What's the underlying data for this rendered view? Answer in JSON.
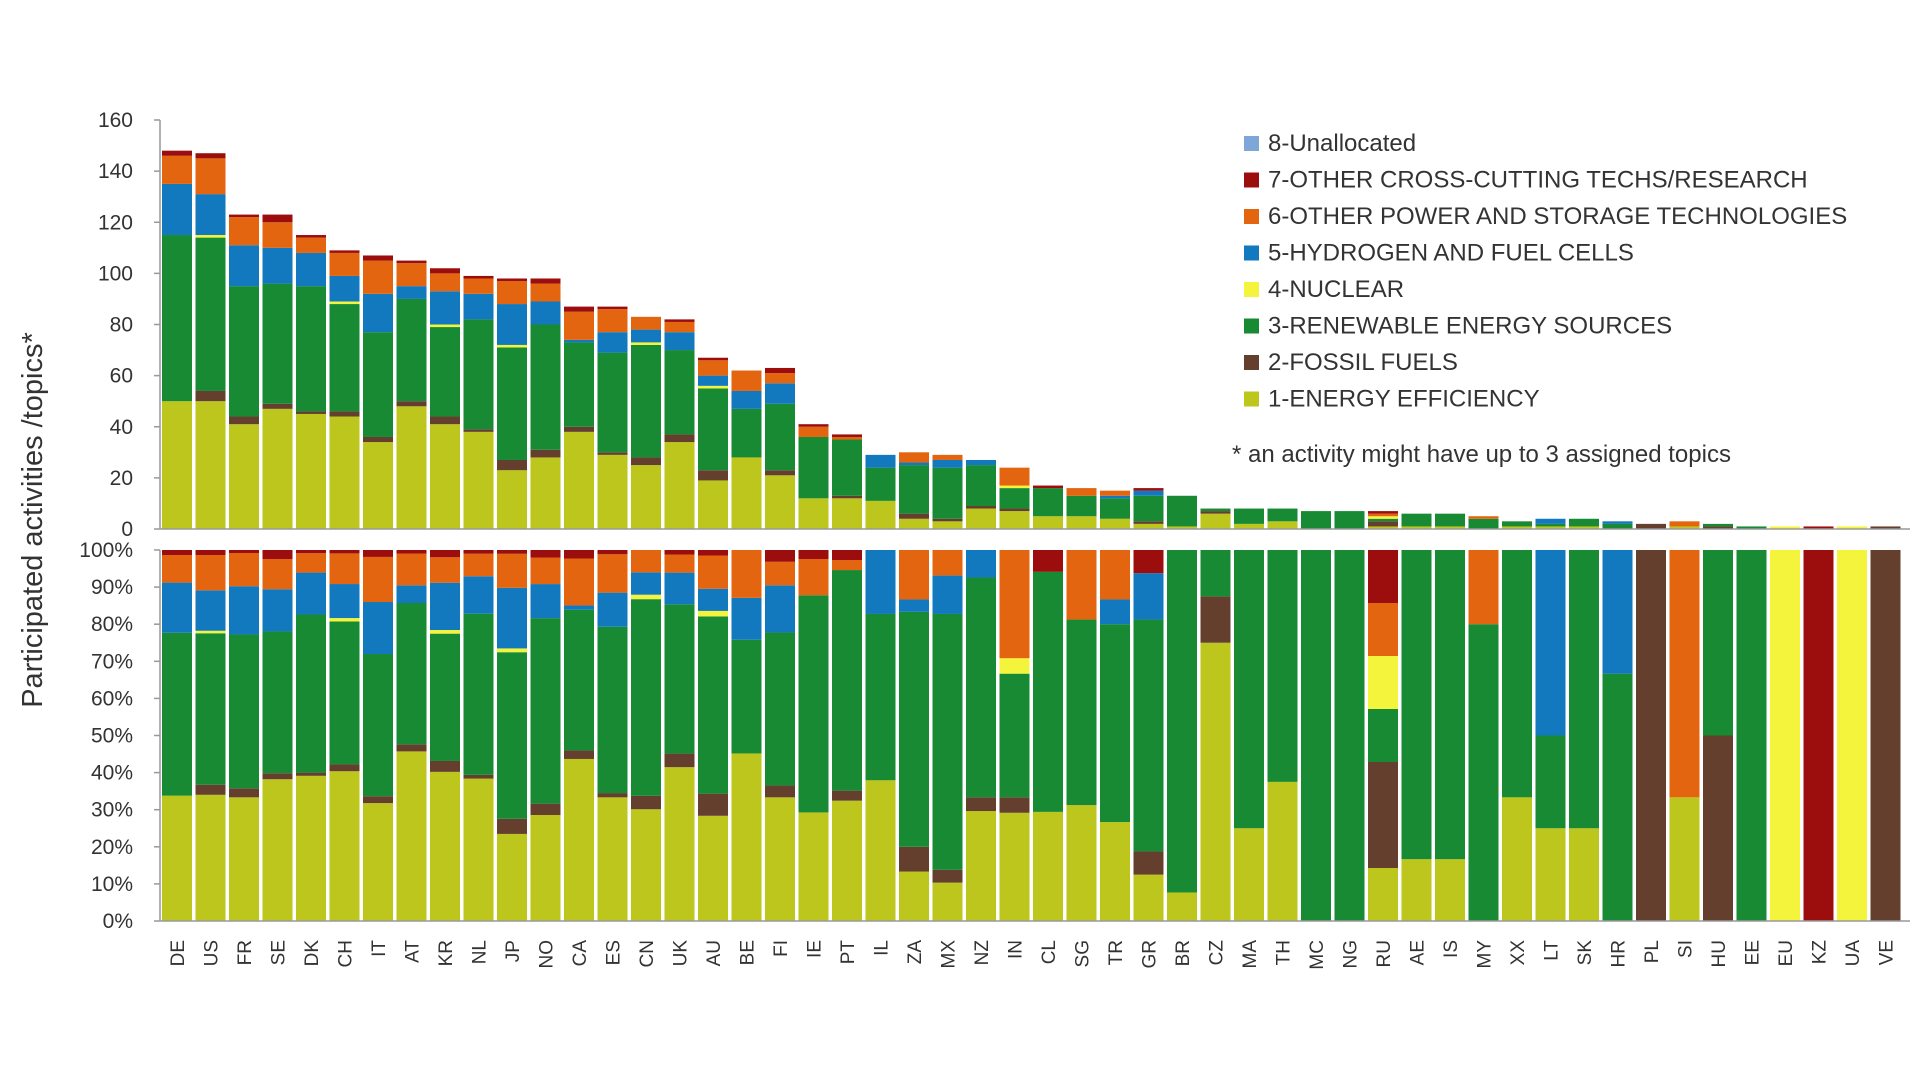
{
  "chart_data": {
    "type": "bar",
    "stacked": true,
    "ylabel": "Participated activities /topics*",
    "note": "* an activity might have up to 3 assigned topics",
    "categories": [
      "DE",
      "US",
      "FR",
      "SE",
      "DK",
      "CH",
      "IT",
      "AT",
      "KR",
      "NL",
      "JP",
      "NO",
      "CA",
      "ES",
      "CN",
      "UK",
      "AU",
      "BE",
      "FI",
      "IE",
      "PT",
      "IL",
      "ZA",
      "MX",
      "NZ",
      "IN",
      "CL",
      "SG",
      "TR",
      "GR",
      "BR",
      "CZ",
      "MA",
      "TH",
      "MC",
      "NG",
      "RU",
      "AE",
      "IS",
      "MY",
      "XX",
      "LT",
      "SK",
      "HR",
      "PL",
      "SI",
      "HU",
      "EE",
      "EU",
      "KZ",
      "UA",
      "VE"
    ],
    "series": [
      {
        "name": "1-ENERGY EFFICIENCY",
        "color": "#bcc61c",
        "values": [
          50,
          50,
          41,
          47,
          45,
          44,
          34,
          48,
          41,
          38,
          23,
          28,
          38,
          29,
          25,
          34,
          19,
          28,
          21,
          12,
          12,
          11,
          4,
          3,
          8,
          7,
          5,
          5,
          4,
          2,
          1,
          6,
          2,
          3,
          0,
          0,
          1,
          1,
          1,
          0,
          1,
          1,
          1,
          0,
          0,
          1,
          0,
          0,
          0,
          0,
          0,
          0
        ]
      },
      {
        "name": "2-FOSSIL FUELS",
        "color": "#643f2e",
        "values": [
          0,
          4,
          3,
          2,
          1,
          2,
          2,
          2,
          3,
          1,
          4,
          3,
          2,
          1,
          3,
          3,
          4,
          0,
          2,
          0,
          1,
          0,
          2,
          1,
          1,
          1,
          0,
          0,
          0,
          1,
          0,
          1,
          0,
          0,
          0,
          0,
          2,
          0,
          0,
          0,
          0,
          0,
          0,
          0,
          2,
          0,
          1,
          0,
          0,
          0,
          0,
          1
        ]
      },
      {
        "name": "3-RENEWABLE ENERGY SOURCES",
        "color": "#178a33",
        "values": [
          65,
          60,
          51,
          47,
          49,
          42,
          41,
          40,
          35,
          43,
          44,
          49,
          33,
          39,
          44,
          33,
          32,
          19,
          26,
          24,
          22,
          13,
          19,
          20,
          16,
          8,
          11,
          8,
          8,
          10,
          12,
          1,
          6,
          5,
          7,
          7,
          1,
          5,
          5,
          4,
          2,
          1,
          3,
          2,
          0,
          0,
          1,
          1,
          0,
          0,
          0,
          0
        ]
      },
      {
        "name": "4-NUCLEAR",
        "color": "#f4f43c",
        "values": [
          0,
          1,
          0,
          0,
          0,
          1,
          0,
          0,
          1,
          0,
          1,
          0,
          0,
          0,
          1,
          0,
          1,
          0,
          0,
          0,
          0,
          0,
          0,
          0,
          0,
          1,
          0,
          0,
          0,
          0,
          0,
          0,
          0,
          0,
          0,
          0,
          1,
          0,
          0,
          0,
          0,
          0,
          0,
          0,
          0,
          0,
          0,
          0,
          1,
          0,
          1,
          0
        ]
      },
      {
        "name": "5-HYDROGEN AND FUEL CELLS",
        "color": "#1279be",
        "values": [
          20,
          16,
          16,
          14,
          13,
          10,
          15,
          5,
          13,
          10,
          16,
          9,
          1,
          8,
          5,
          7,
          4,
          7,
          8,
          0,
          0,
          5,
          1,
          3,
          2,
          0,
          0,
          0,
          1,
          2,
          0,
          0,
          0,
          0,
          0,
          0,
          0,
          0,
          0,
          0,
          0,
          2,
          0,
          1,
          0,
          0,
          0,
          0,
          0,
          0,
          0,
          0
        ]
      },
      {
        "name": "6-OTHER POWER AND STORAGE TECHNOLOGIES",
        "color": "#e4650f",
        "values": [
          11,
          14,
          11,
          10,
          6,
          9,
          13,
          9,
          7,
          6,
          9,
          7,
          11,
          9,
          5,
          4,
          6,
          8,
          4,
          4,
          1,
          0,
          4,
          2,
          0,
          7,
          0,
          3,
          2,
          0,
          0,
          0,
          0,
          0,
          0,
          0,
          1,
          0,
          0,
          1,
          0,
          0,
          0,
          0,
          0,
          2,
          0,
          0,
          0,
          0,
          0,
          0
        ]
      },
      {
        "name": "7-OTHER CROSS-CUTTING TECHS/RESEARCH",
        "color": "#9c0d0d",
        "values": [
          2,
          2,
          1,
          3,
          1,
          1,
          2,
          1,
          2,
          1,
          1,
          2,
          2,
          1,
          0,
          1,
          1,
          0,
          2,
          1,
          1,
          0,
          0,
          0,
          0,
          0,
          1,
          0,
          0,
          1,
          0,
          0,
          0,
          0,
          0,
          0,
          1,
          0,
          0,
          0,
          0,
          0,
          0,
          0,
          0,
          0,
          0,
          0,
          0,
          1,
          0,
          0
        ]
      },
      {
        "name": "8-Unallocated",
        "color": "#7ea6d6",
        "values": [
          0,
          0,
          0,
          0,
          0,
          0,
          0,
          0,
          0,
          0,
          0,
          0,
          0,
          0,
          0,
          0,
          0,
          0,
          0,
          0,
          0,
          0,
          0,
          0,
          0,
          0,
          0,
          0,
          0,
          0,
          0,
          0,
          0,
          0,
          0,
          0,
          0,
          0,
          0,
          0,
          0,
          0,
          0,
          0,
          0,
          0,
          0,
          0,
          0,
          0,
          0,
          0
        ]
      }
    ],
    "top_panel": {
      "ylim": [
        0,
        160
      ],
      "yticks": [
        "0",
        "20",
        "40",
        "60",
        "80",
        "100",
        "120",
        "140",
        "160"
      ]
    },
    "bottom_panel": {
      "ylim": [
        0,
        100
      ],
      "yticks": [
        "0%",
        "10%",
        "20%",
        "30%",
        "40%",
        "50%",
        "60%",
        "70%",
        "80%",
        "90%",
        "100%"
      ]
    },
    "legend_position": "top-right",
    "grid": false
  }
}
